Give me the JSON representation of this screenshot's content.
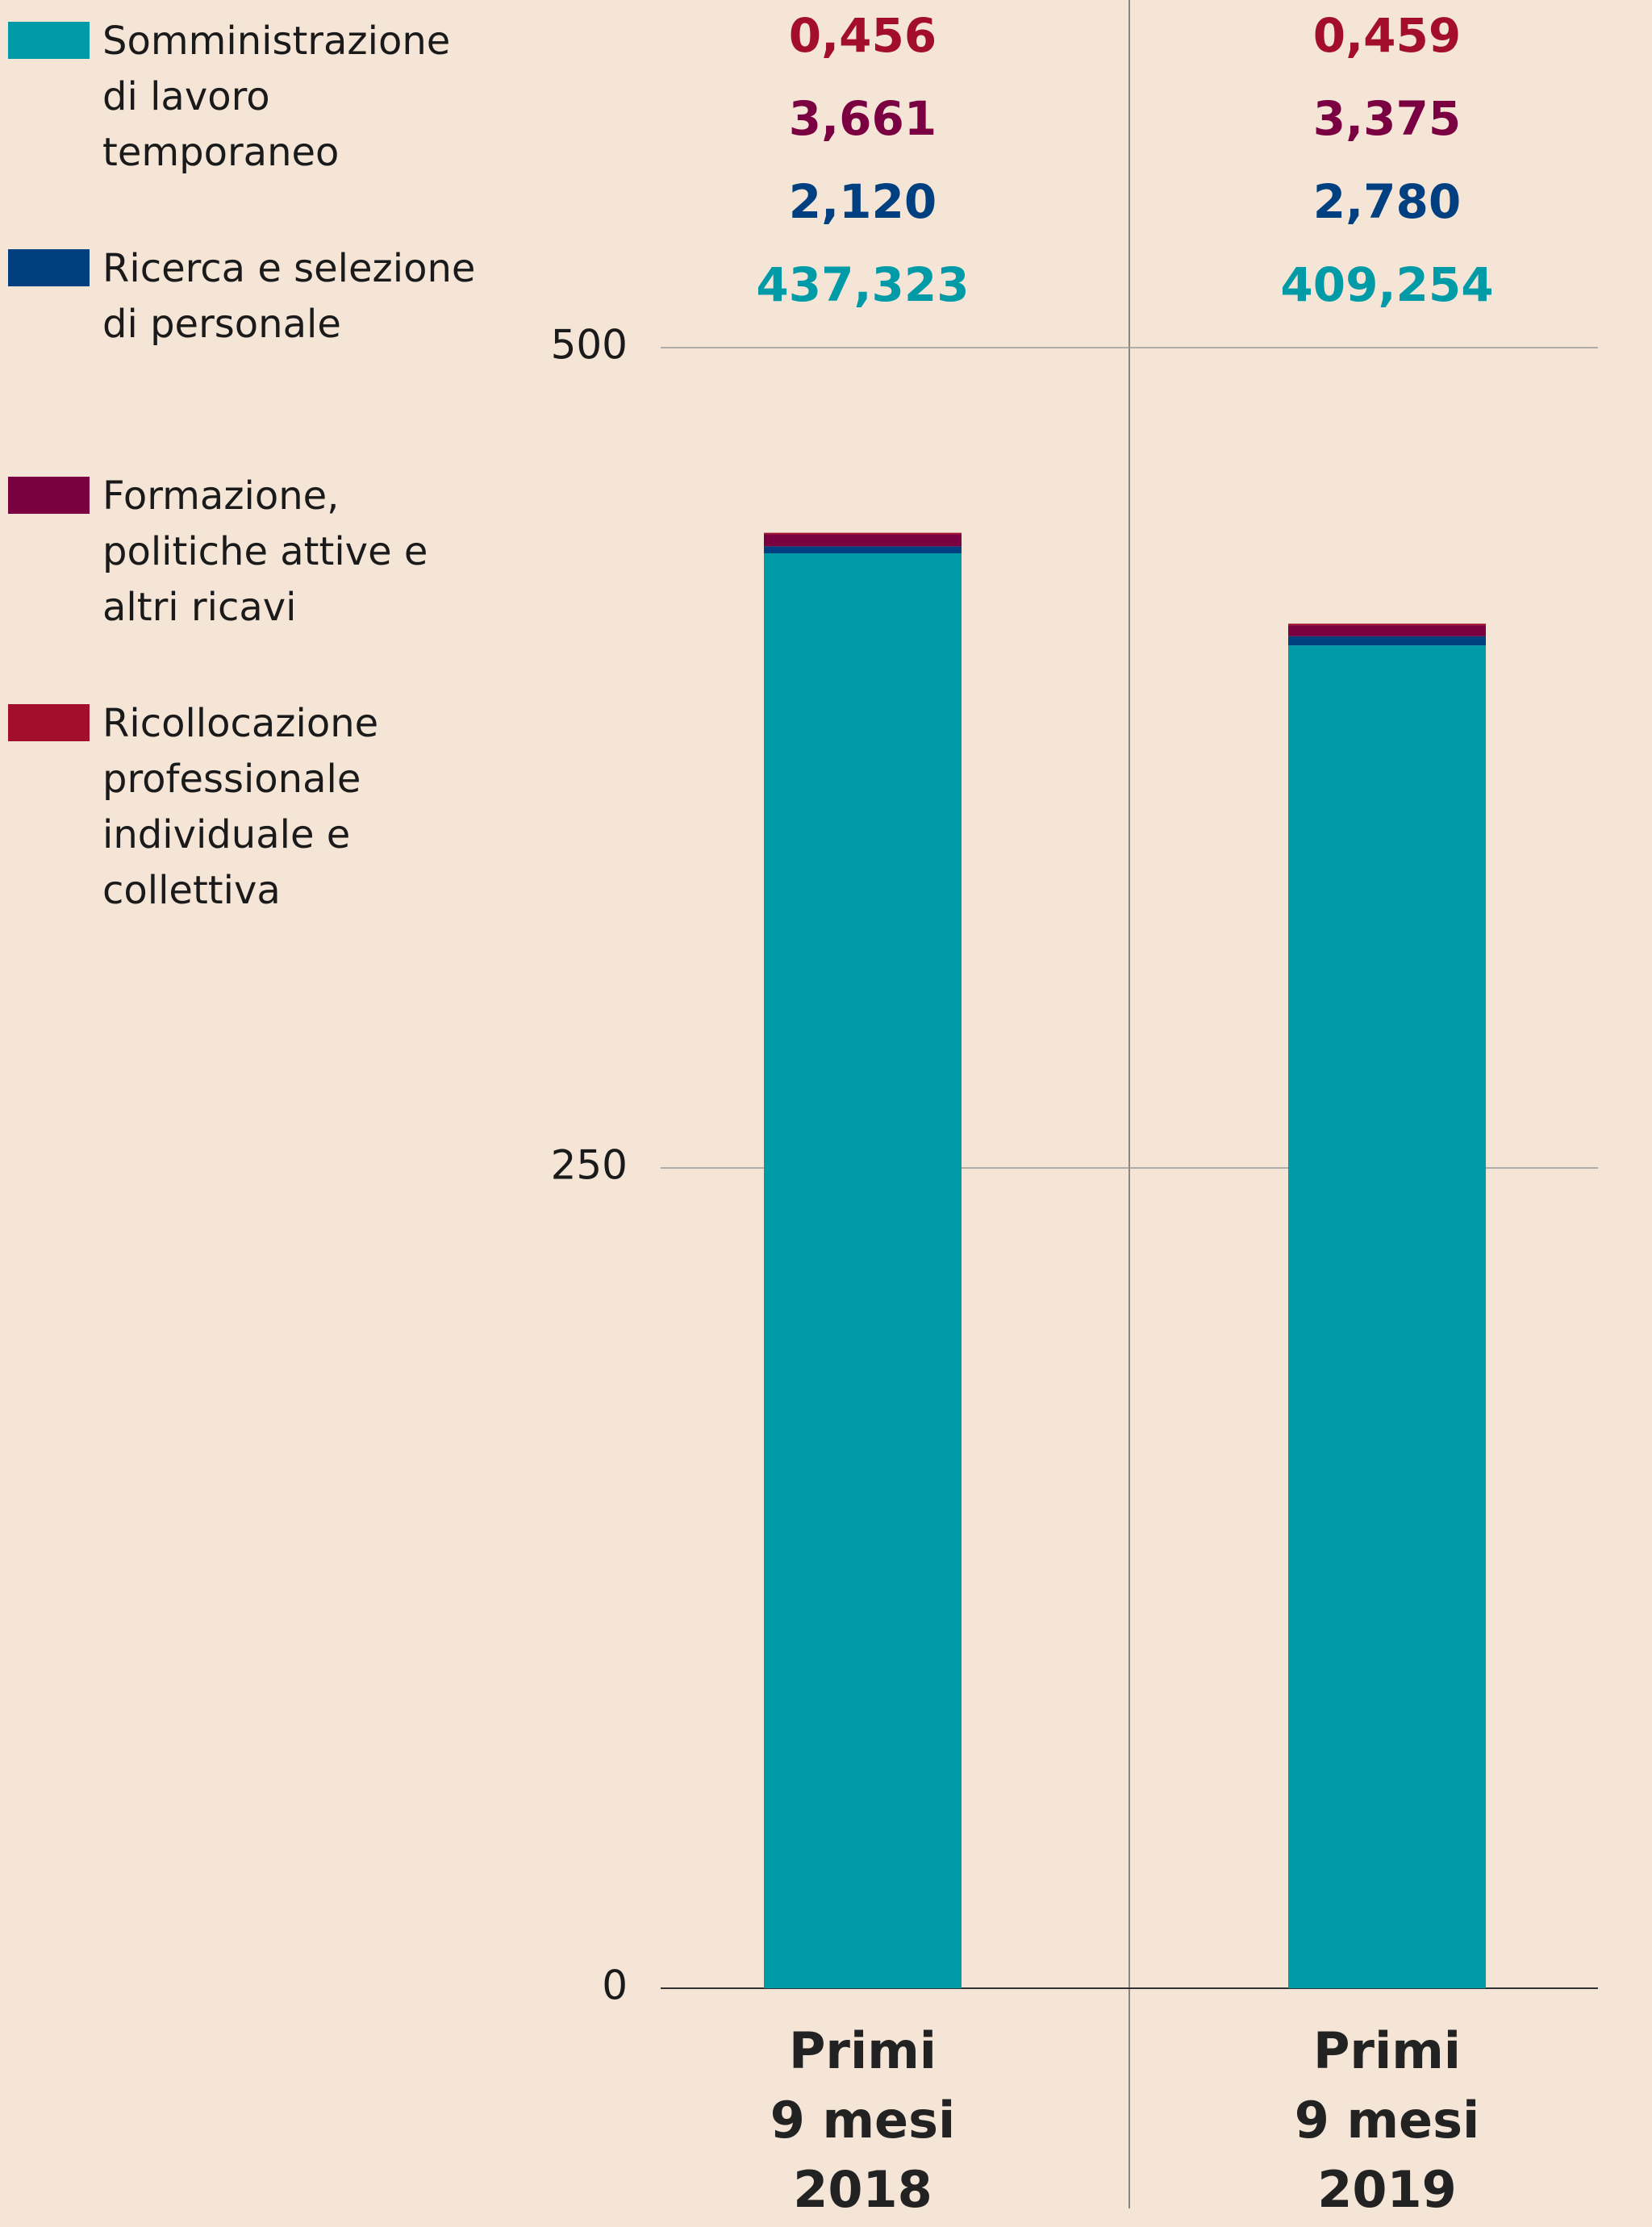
{
  "chart_data": {
    "type": "stacked-bar",
    "categories": [
      "Primi 9 mesi 2018",
      "Primi 9 mesi 2019"
    ],
    "series": [
      {
        "name": "Somministrazione di lavoro temporaneo",
        "color": "#009ba7",
        "values": [
          437.323,
          409.254
        ],
        "value_labels": [
          "437,323",
          "409,254"
        ]
      },
      {
        "name": "Ricerca e selezione di personale",
        "color": "#003f80",
        "values": [
          2.12,
          2.78
        ],
        "value_labels": [
          "2,120",
          "2,780"
        ]
      },
      {
        "name": "Formazione, politiche attive e altri ricavi",
        "color": "#7b0042",
        "values": [
          3.661,
          3.375
        ],
        "value_labels": [
          "3,661",
          "3,375"
        ]
      },
      {
        "name": "Ricollocazione professionale individuale e collettiva",
        "color": "#a30e2c",
        "values": [
          0.456,
          0.459
        ],
        "value_labels": [
          "0,456",
          "0,459"
        ]
      }
    ],
    "ylim": [
      0,
      500
    ],
    "yticks": [
      0,
      250,
      500
    ],
    "grid": true
  }
}
